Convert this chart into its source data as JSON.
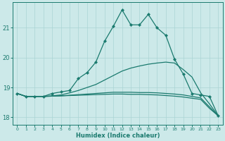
{
  "xlabel": "Humidex (Indice chaleur)",
  "bg_color": "#cce9e9",
  "grid_color": "#aad4d4",
  "line_color": "#1a7a6e",
  "xlim": [
    -0.5,
    23.5
  ],
  "ylim": [
    17.75,
    21.85
  ],
  "yticks": [
    18,
    19,
    20,
    21
  ],
  "xticks": [
    0,
    1,
    2,
    3,
    4,
    5,
    6,
    7,
    8,
    9,
    10,
    11,
    12,
    13,
    14,
    15,
    16,
    17,
    18,
    19,
    20,
    21,
    22,
    23
  ],
  "lines": [
    {
      "x": [
        0,
        1,
        2,
        3,
        4,
        5,
        6,
        7,
        8,
        9,
        10,
        11,
        12,
        13,
        14,
        15,
        16,
        17,
        18,
        19,
        20,
        21,
        22,
        23
      ],
      "y": [
        18.8,
        18.7,
        18.7,
        18.7,
        18.8,
        18.85,
        18.9,
        19.3,
        19.5,
        19.85,
        20.55,
        21.05,
        21.6,
        21.1,
        21.1,
        21.45,
        21.0,
        20.75,
        19.95,
        19.45,
        18.8,
        18.75,
        18.7,
        18.05
      ],
      "has_markers": true
    },
    {
      "x": [
        0,
        1,
        2,
        3,
        4,
        5,
        6,
        7,
        8,
        9,
        10,
        11,
        12,
        13,
        14,
        15,
        16,
        17,
        18,
        19,
        20,
        21,
        22,
        23
      ],
      "y": [
        18.8,
        18.7,
        18.7,
        18.7,
        18.72,
        18.75,
        18.82,
        18.9,
        19.0,
        19.1,
        19.25,
        19.4,
        19.55,
        19.65,
        19.72,
        19.78,
        19.82,
        19.85,
        19.82,
        19.6,
        19.35,
        18.82,
        18.45,
        18.05
      ],
      "has_markers": false
    },
    {
      "x": [
        0,
        1,
        2,
        3,
        4,
        5,
        6,
        7,
        8,
        9,
        10,
        11,
        12,
        13,
        14,
        15,
        16,
        17,
        18,
        19,
        20,
        21,
        22,
        23
      ],
      "y": [
        18.8,
        18.7,
        18.7,
        18.7,
        18.71,
        18.72,
        18.74,
        18.76,
        18.78,
        18.8,
        18.82,
        18.84,
        18.84,
        18.84,
        18.83,
        18.83,
        18.82,
        18.8,
        18.78,
        18.75,
        18.7,
        18.65,
        18.35,
        18.05
      ],
      "has_markers": false
    },
    {
      "x": [
        0,
        1,
        2,
        3,
        4,
        5,
        6,
        7,
        8,
        9,
        10,
        11,
        12,
        13,
        14,
        15,
        16,
        17,
        18,
        19,
        20,
        21,
        22,
        23
      ],
      "y": [
        18.8,
        18.7,
        18.7,
        18.7,
        18.71,
        18.72,
        18.73,
        18.74,
        18.75,
        18.76,
        18.77,
        18.78,
        18.78,
        18.77,
        18.77,
        18.76,
        18.75,
        18.73,
        18.71,
        18.68,
        18.64,
        18.6,
        18.3,
        18.05
      ],
      "has_markers": false
    }
  ]
}
